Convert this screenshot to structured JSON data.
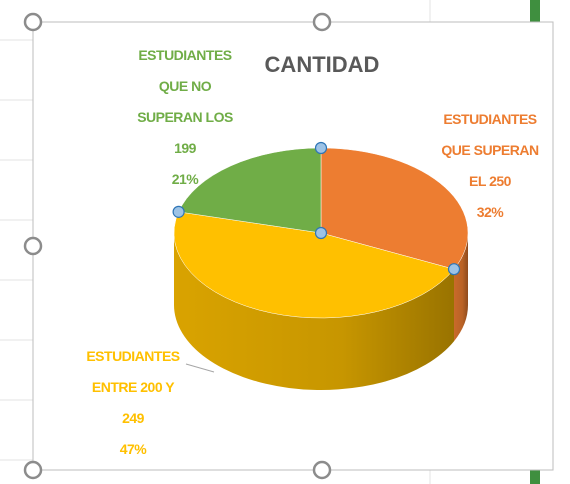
{
  "chart_data": {
    "type": "pie3d",
    "title": "CANTIDAD",
    "categories": [
      "ESTUDIANTES\nQUE SUPERAN\nEL 250",
      "ESTUDIANTES\nENTRE 200 Y\n249",
      "ESTUDIANTES\nQUE NO\nSUPERAN LOS\n199"
    ],
    "values": [
      32,
      47,
      21
    ],
    "value_labels": [
      "32%",
      "47%",
      "21%"
    ],
    "colors": [
      "#ed7d31",
      "#ffc000",
      "#70ad47"
    ]
  }
}
